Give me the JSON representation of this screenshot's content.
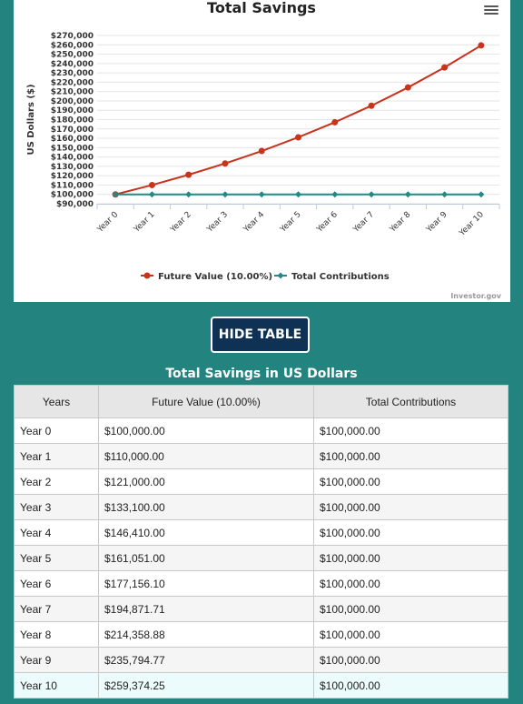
{
  "chart_data": {
    "type": "line",
    "title": "Total Savings",
    "ylabel": "US Dollars ($)",
    "xlabel": "",
    "categories": [
      "Year 0",
      "Year 1",
      "Year 2",
      "Year 3",
      "Year 4",
      "Year 5",
      "Year 6",
      "Year 7",
      "Year 8",
      "Year 9",
      "Year 10"
    ],
    "ylim": [
      90000,
      270000
    ],
    "yticks": [
      "$90,000",
      "$100,000",
      "$110,000",
      "$120,000",
      "$130,000",
      "$140,000",
      "$150,000",
      "$160,000",
      "$170,000",
      "$180,000",
      "$190,000",
      "$200,000",
      "$210,000",
      "$220,000",
      "$230,000",
      "$240,000",
      "$250,000",
      "$260,000",
      "$270,000"
    ],
    "grid": true,
    "legend_position": "bottom",
    "series": [
      {
        "name": "Future Value (10.00%)",
        "color": "#c8331b",
        "marker": "circle",
        "values": [
          100000,
          110000,
          121000,
          133100,
          146410,
          161051,
          177156.1,
          194871.71,
          214358.88,
          235794.77,
          259374.25
        ]
      },
      {
        "name": "Total Contributions",
        "color": "#208a87",
        "marker": "diamond",
        "values": [
          100000,
          100000,
          100000,
          100000,
          100000,
          100000,
          100000,
          100000,
          100000,
          100000,
          100000
        ]
      }
    ],
    "credit": "Investor.gov"
  },
  "controls": {
    "menu_icon": "hamburger-menu-icon",
    "hide_table_label": "HIDE TABLE"
  },
  "table": {
    "title": "Total Savings in US Dollars",
    "headers": [
      "Years",
      "Future Value (10.00%)",
      "Total Contributions"
    ],
    "rows": [
      [
        "Year 0",
        "$100,000.00",
        "$100,000.00"
      ],
      [
        "Year 1",
        "$110,000.00",
        "$100,000.00"
      ],
      [
        "Year 2",
        "$121,000.00",
        "$100,000.00"
      ],
      [
        "Year 3",
        "$133,100.00",
        "$100,000.00"
      ],
      [
        "Year 4",
        "$146,410.00",
        "$100,000.00"
      ],
      [
        "Year 5",
        "$161,051.00",
        "$100,000.00"
      ],
      [
        "Year 6",
        "$177,156.10",
        "$100,000.00"
      ],
      [
        "Year 7",
        "$194,871.71",
        "$100,000.00"
      ],
      [
        "Year 8",
        "$214,358.88",
        "$100,000.00"
      ],
      [
        "Year 9",
        "$235,794.77",
        "$100,000.00"
      ],
      [
        "Year 10",
        "$259,374.25",
        "$100,000.00"
      ]
    ]
  },
  "colors": {
    "background": "#23837f",
    "button": "#0e3154",
    "highlight_row": "#ecfbfb"
  }
}
